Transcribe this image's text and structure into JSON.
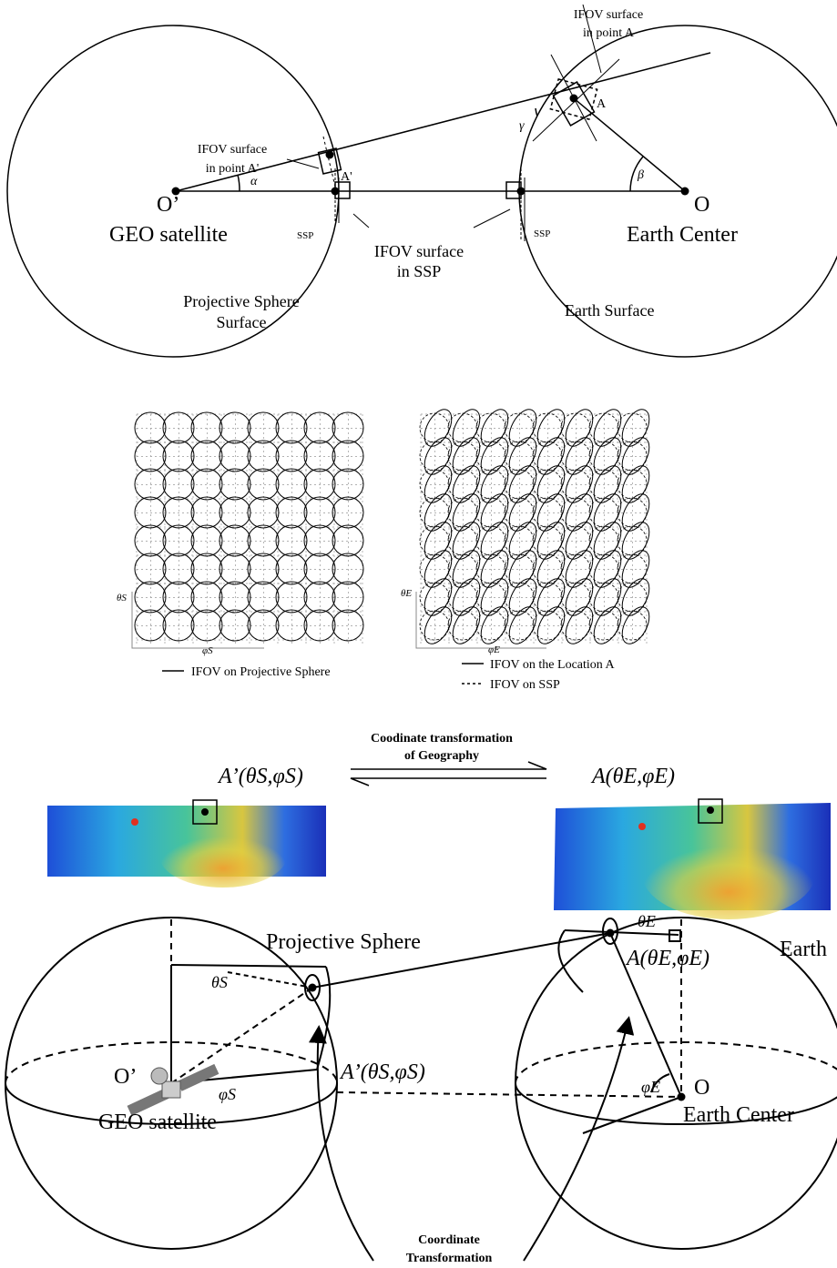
{
  "top_diagram": {
    "ifov_a": [
      "IFOV surface",
      "in point A"
    ],
    "point_a": "A",
    "gamma": "γ",
    "ifov_a_prime": [
      "IFOV surface",
      "in point A'"
    ],
    "point_a_prime": "A'",
    "o_prime": "O’",
    "alpha": "α",
    "geo_satellite": "GEO satellite",
    "ssp_left": "SSP",
    "ifov_ssp": [
      "IFOV surface",
      "in SSP"
    ],
    "ssp_right": "SSP",
    "beta": "β",
    "o": "O",
    "earth_center": "Earth Center",
    "projective_sphere_surface": [
      "Projective Sphere",
      "Surface"
    ],
    "earth_surface": "Earth Surface"
  },
  "ifov_grids": {
    "left": {
      "y_axis": "θS",
      "x_axis": "φS",
      "legend": [
        "IFOV on Projective Sphere"
      ]
    },
    "right": {
      "y_axis": "θE",
      "x_axis": "φE",
      "legend": [
        "IFOV on the Location A",
        "IFOV on SSP"
      ]
    }
  },
  "transformation": {
    "caption": [
      "Coodinate transformation",
      "of Geography"
    ],
    "left_point": "A’(θS,φS)",
    "right_point": "A(θE,φE)"
  },
  "bottom_diagram": {
    "projective_sphere": "Projective Sphere",
    "earth": "Earth",
    "theta_e": "θE",
    "point_a": "A(θE,φE)",
    "theta_s": "θS",
    "o_prime": "O’",
    "point_a_prime": "A’(θS,φS)",
    "phi_s": "φS",
    "geo_satellite": "GEO satellite",
    "phi_e": "φE",
    "o": "O",
    "earth_center": "Earth Center",
    "caption": [
      "Coordinate",
      "Transformation"
    ]
  }
}
